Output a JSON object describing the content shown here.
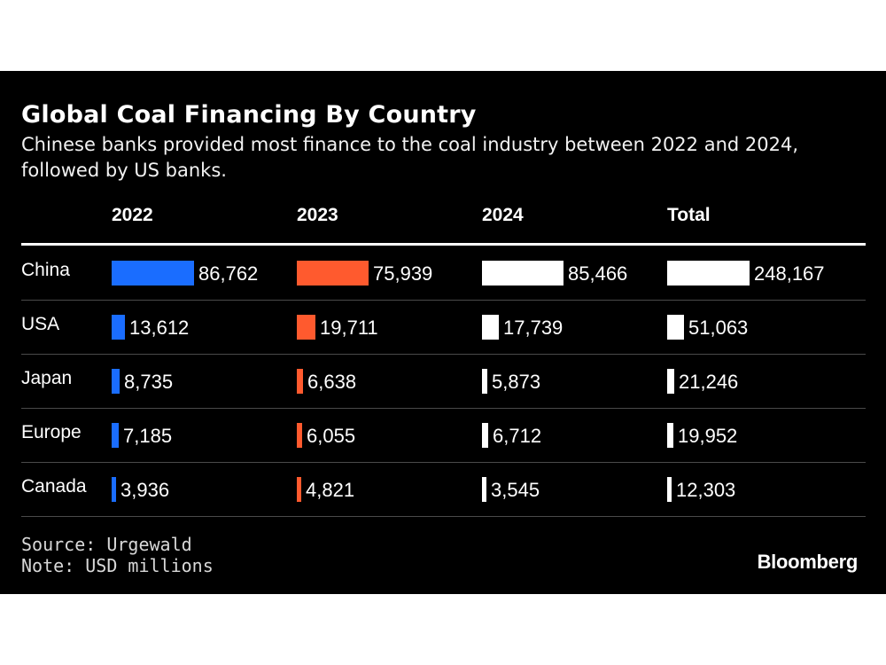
{
  "colors": {
    "background": "#000000",
    "series_2022": "#1a6dff",
    "series_2023": "#ff5a2e",
    "series_2024": "#ffffff",
    "total": "#ffffff",
    "rule": "#4a4a4a"
  },
  "chart_data": {
    "type": "bar",
    "title": "Global Coal Financing By Country",
    "subtitle": "Chinese banks provided most finance to the coal industry between 2022 and 2024, followed by US banks.",
    "categories": [
      "China",
      "USA",
      "Japan",
      "Europe",
      "Canada"
    ],
    "series": [
      {
        "name": "2022",
        "color": "#1a6dff",
        "values": [
          86762,
          13612,
          8735,
          7185,
          3936
        ],
        "labels": [
          "86,762",
          "13,612",
          "8,735",
          "7,185",
          "3,936"
        ]
      },
      {
        "name": "2023",
        "color": "#ff5a2e",
        "values": [
          75939,
          19711,
          6638,
          6055,
          4821
        ],
        "labels": [
          "75,939",
          "19,711",
          "6,638",
          "6,055",
          "4,821"
        ]
      },
      {
        "name": "2024",
        "color": "#ffffff",
        "values": [
          85466,
          17739,
          5873,
          6712,
          3545
        ],
        "labels": [
          "85,466",
          "17,739",
          "5,873",
          "6,712",
          "3,545"
        ]
      },
      {
        "name": "Total",
        "color": "#ffffff",
        "values": [
          248167,
          51063,
          21246,
          19952,
          12303
        ],
        "labels": [
          "248,167",
          "51,063",
          "21,246",
          "19,952",
          "12,303"
        ]
      }
    ]
  },
  "footer": {
    "source": "Source: Urgewald",
    "note": "Note: USD millions",
    "brand": "Bloomberg"
  }
}
